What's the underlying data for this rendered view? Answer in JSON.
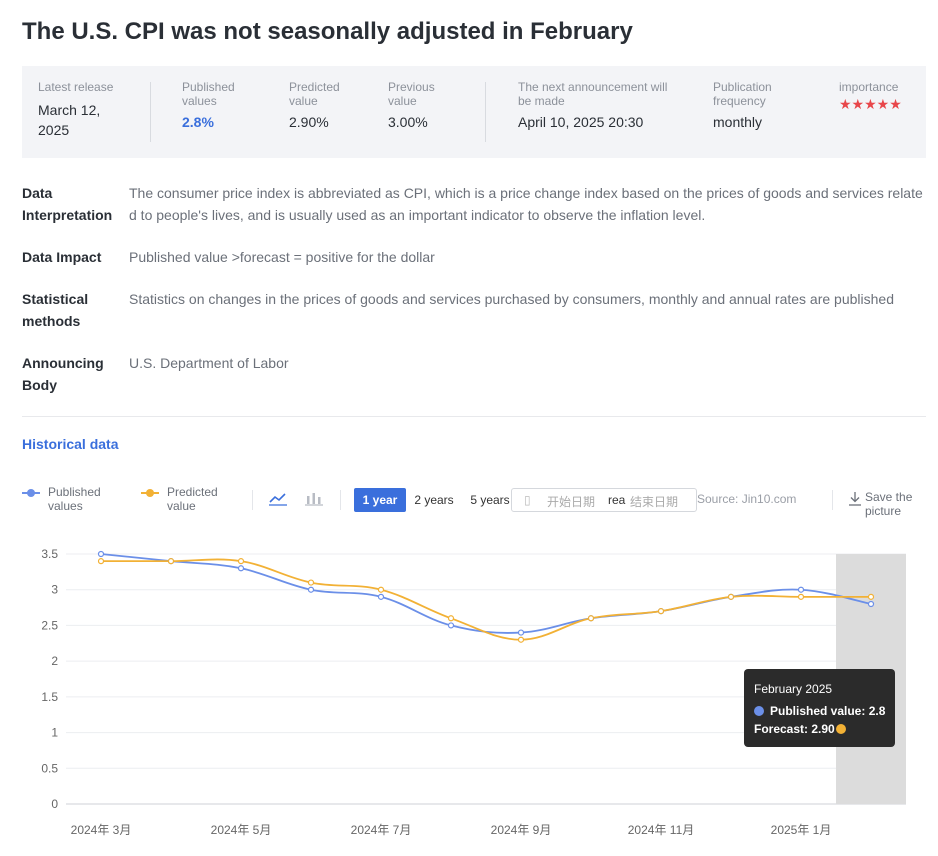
{
  "page_title": "The U.S. CPI was not seasonally adjusted in February",
  "summary": {
    "latest_release_label": "Latest release",
    "latest_release_value_line1": "March 12,",
    "latest_release_value_line2": "2025",
    "published_label_line1": "Published",
    "published_label_line2": "values",
    "published_value": "2.8%",
    "predicted_label_line1": "Predicted",
    "predicted_label_line2": "value",
    "predicted_value": "2.90%",
    "previous_label_line1": "Previous",
    "previous_label_line2": "value",
    "previous_value": "3.00%",
    "next_label_line1": "The next announcement will",
    "next_label_line2": "be made",
    "next_value": "April 10, 2025 20:30",
    "frequency_label_line1": "Publication",
    "frequency_label_line2": "frequency",
    "frequency_value": "monthly",
    "importance_label": "importance",
    "importance_stars": "★★★★★",
    "importance_rating": 5
  },
  "info": {
    "interpretation_key_line1": "Data",
    "interpretation_key_line2": "Interpretation",
    "interpretation_value": "The consumer price index is abbreviated as CPI, which is a price change index based on the prices of goods and services relate d to people's lives, and is usually used as an important indicator to observe the inflation level.",
    "impact_key": "Data Impact",
    "impact_value": "Published value >forecast = positive for the dollar",
    "methods_key_line1": "Statistical",
    "methods_key_line2": "methods",
    "methods_value": "Statistics on changes in the prices of goods and services purchased by consumers, monthly and annual rates are published",
    "body_key_line1": "Announcing",
    "body_key_line2": "Body",
    "body_value": "U.S. Department of Labor"
  },
  "historical": {
    "title": "Historical data",
    "legend_published_line1": "Published",
    "legend_published_line2": "values",
    "legend_predicted_line1": "Predicted",
    "legend_predicted_line2": "value",
    "range_1y": "1 year",
    "range_2y": "2 years",
    "range_5y": "5 years",
    "date_start_placeholder": "开始日期",
    "date_mid": "rea",
    "date_end_placeholder": "结束日期",
    "source": "Source: Jin10.com",
    "save_line1": "Save the",
    "save_line2": "picture"
  },
  "tooltip": {
    "month": "February 2025",
    "published": "Published value: 2.8",
    "forecast": "Forecast: 2.90"
  },
  "colors": {
    "published": "#6b8fe8",
    "predicted": "#f2b135",
    "accent": "#3a6fdc",
    "stars": "#e8464a"
  },
  "chart_data": {
    "type": "line",
    "x": [
      "2024-03",
      "2024-04",
      "2024-05",
      "2024-06",
      "2024-07",
      "2024-08",
      "2024-09",
      "2024-10",
      "2024-11",
      "2024-12",
      "2025-01",
      "2025-02"
    ],
    "xtick_labels": [
      "2024年 3月",
      "2024年 5月",
      "2024年 7月",
      "2024年 9月",
      "2024年 11月",
      "2025年 1月"
    ],
    "xtick_months": [
      "2024-03",
      "2024-05",
      "2024-07",
      "2024-09",
      "2024-11",
      "2025-01"
    ],
    "series": [
      {
        "name": "Published values",
        "values": [
          3.5,
          3.4,
          3.3,
          3.0,
          2.9,
          2.5,
          2.4,
          2.6,
          2.7,
          2.9,
          3.0,
          2.8
        ]
      },
      {
        "name": "Predicted value",
        "values": [
          3.4,
          3.4,
          3.4,
          3.1,
          3.0,
          2.6,
          2.3,
          2.6,
          2.7,
          2.9,
          2.9,
          2.9
        ]
      }
    ],
    "ylim": [
      0,
      3.5
    ],
    "yticks": [
      0,
      0.5,
      1,
      1.5,
      2,
      2.5,
      3,
      3.5
    ],
    "highlighted_x": "2025-02",
    "grid": true
  }
}
